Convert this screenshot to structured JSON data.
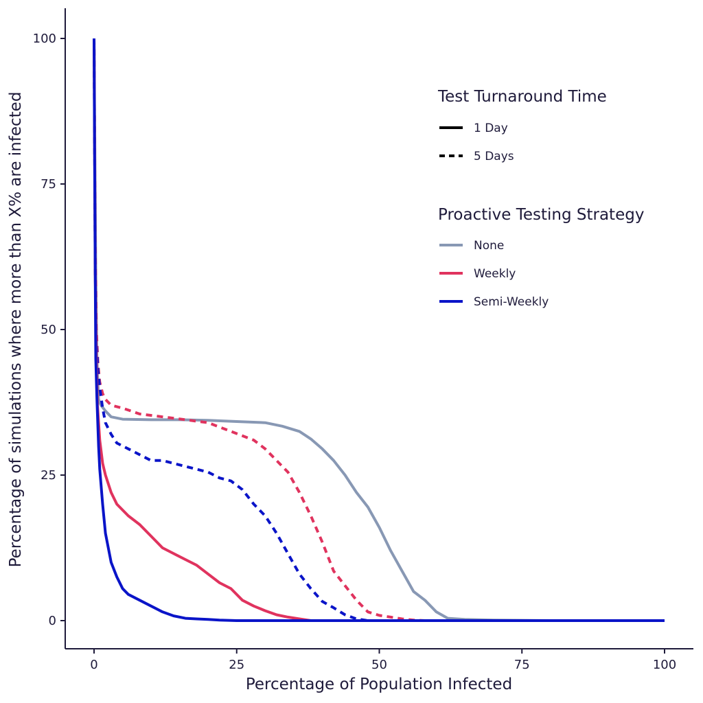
{
  "chart_data": {
    "type": "line",
    "xlabel": "Percentage of Population Infected",
    "ylabel": "Percentage of simulations where more than X% are infected",
    "xlim": [
      -5,
      105
    ],
    "ylim": [
      -5,
      105
    ],
    "xticks": [
      0,
      25,
      50,
      75,
      100
    ],
    "yticks": [
      0,
      25,
      50,
      75,
      100
    ],
    "grid": false,
    "legend_position": "top-right",
    "legends": {
      "linetype": {
        "title": "Test Turnaround Time",
        "entries": [
          {
            "label": "1 Day",
            "dash": "solid"
          },
          {
            "label": "5 Days",
            "dash": "dashed"
          }
        ]
      },
      "color": {
        "title": "Proactive Testing Strategy",
        "entries": [
          {
            "label": "None",
            "color": "#8898b4"
          },
          {
            "label": "Weekly",
            "color": "#e0335e"
          },
          {
            "label": "Semi-Weekly",
            "color": "#0a14c8"
          }
        ]
      }
    },
    "series": [
      {
        "strategy": "None",
        "turnaround": "1 Day",
        "color": "#8898b4",
        "dash": "solid",
        "x": [
          0,
          0.3,
          0.5,
          0.8,
          1.2,
          2,
          3,
          5,
          10,
          15,
          20,
          25,
          30,
          33,
          36,
          38,
          40,
          42,
          44,
          46,
          48,
          50,
          52,
          54,
          56,
          58,
          60,
          62,
          65,
          70,
          80,
          100
        ],
        "y": [
          100,
          60,
          45,
          38,
          37,
          36,
          35,
          34.6,
          34.5,
          34.5,
          34.4,
          34.2,
          34,
          33.4,
          32.5,
          31.2,
          29.5,
          27.5,
          25,
          22,
          19.5,
          16,
          12,
          8.5,
          5,
          3.5,
          1.5,
          0.4,
          0.2,
          0.1,
          0,
          0
        ]
      },
      {
        "strategy": "Weekly",
        "turnaround": "5 Days",
        "color": "#e0335e",
        "dash": "dashed",
        "x": [
          0,
          0.2,
          0.4,
          0.7,
          1,
          1.5,
          2,
          3,
          5,
          8,
          12,
          16,
          20,
          24,
          28,
          30,
          32,
          34,
          36,
          38,
          40,
          42,
          44,
          46,
          48,
          50,
          52,
          54,
          56,
          58,
          100
        ],
        "y": [
          100,
          65,
          50,
          44,
          41,
          39,
          38,
          37,
          36.5,
          35.5,
          35,
          34.5,
          34,
          32.5,
          31,
          29.5,
          27.5,
          25.5,
          22,
          18,
          13.5,
          8.5,
          6,
          3.5,
          1.5,
          0.9,
          0.6,
          0.3,
          0.1,
          0,
          0
        ]
      },
      {
        "strategy": "Semi-Weekly",
        "turnaround": "5 Days",
        "color": "#0a14c8",
        "dash": "dashed",
        "x": [
          0,
          0.2,
          0.4,
          0.7,
          1,
          1.5,
          2,
          3,
          4,
          6,
          8,
          10,
          12,
          16,
          20,
          22,
          24,
          26,
          28,
          30,
          32,
          34,
          36,
          38,
          40,
          42,
          44,
          46,
          48,
          50,
          100
        ],
        "y": [
          100,
          60,
          48,
          43,
          40,
          36.5,
          34,
          32,
          30.5,
          29.5,
          28.5,
          27.5,
          27.5,
          26.5,
          25.5,
          24.5,
          24,
          22.5,
          20,
          18,
          15,
          11.5,
          8,
          5.5,
          3.3,
          2.2,
          1,
          0.3,
          0,
          0,
          0
        ]
      },
      {
        "strategy": "Weekly",
        "turnaround": "1 Day",
        "color": "#e0335e",
        "dash": "solid",
        "x": [
          0,
          0.2,
          0.4,
          0.6,
          1,
          1.5,
          2,
          3,
          4,
          6,
          8,
          10,
          12,
          14,
          16,
          18,
          20,
          22,
          24,
          26,
          28,
          30,
          32,
          34,
          36,
          38,
          40,
          100
        ],
        "y": [
          100,
          60,
          45,
          37,
          31,
          27,
          25,
          22,
          20,
          18,
          16.5,
          14.5,
          12.5,
          11.5,
          10.5,
          9.5,
          8,
          6.5,
          5.5,
          3.5,
          2.5,
          1.7,
          1,
          0.6,
          0.3,
          0,
          0,
          0
        ]
      },
      {
        "strategy": "Semi-Weekly",
        "turnaround": "1 Day",
        "color": "#0a14c8",
        "dash": "solid",
        "x": [
          0,
          0.1,
          0.2,
          0.3,
          0.5,
          0.8,
          1,
          1.5,
          2,
          3,
          4,
          5,
          6,
          8,
          10,
          12,
          14,
          16,
          18,
          20,
          22,
          25,
          30,
          50,
          100
        ],
        "y": [
          100,
          80,
          60,
          45,
          38,
          30,
          26,
          20,
          15,
          10,
          7.5,
          5.5,
          4.5,
          3.5,
          2.5,
          1.5,
          0.8,
          0.4,
          0.3,
          0.2,
          0.1,
          0,
          0,
          0,
          0
        ]
      }
    ]
  }
}
